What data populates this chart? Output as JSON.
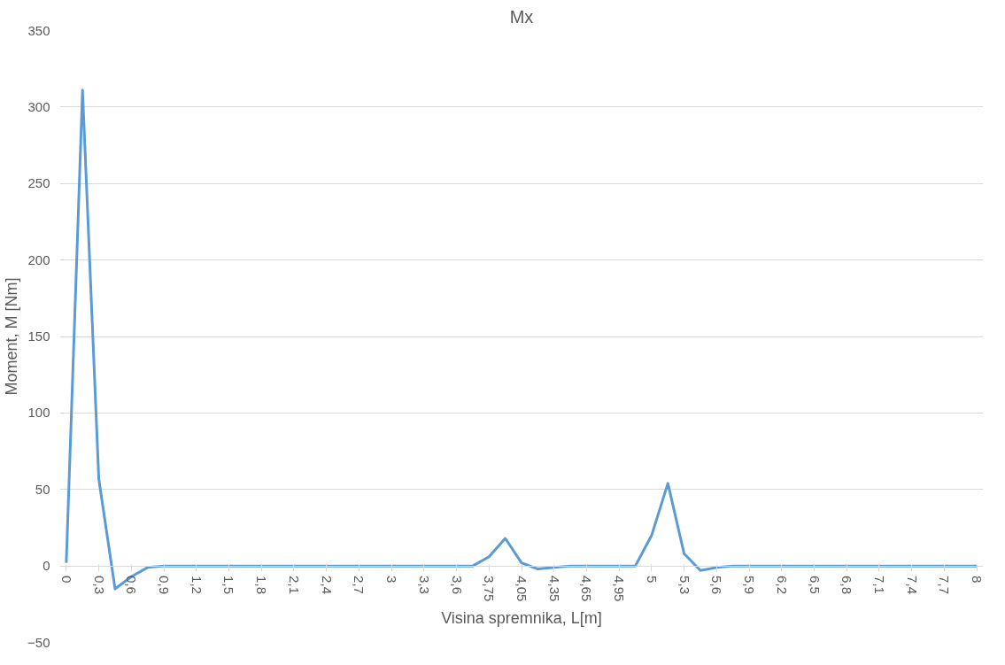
{
  "chart_data": {
    "type": "line",
    "title": "Mx",
    "xlabel": "Visina spremnika, L[m]",
    "ylabel": "Moment, M [Nm]",
    "categories": [
      "0",
      null,
      "0,3",
      null,
      "0,6",
      null,
      "0,9",
      null,
      "1,2",
      null,
      "1,5",
      null,
      "1,8",
      null,
      "2,1",
      null,
      "2,4",
      null,
      "2,7",
      null,
      "3",
      null,
      "3,3",
      null,
      "3,6",
      null,
      "3,75",
      null,
      "4,05",
      null,
      "4,35",
      null,
      "4,65",
      null,
      "4,95",
      null,
      "5",
      null,
      "5,3",
      null,
      "5,6",
      null,
      "5,9",
      null,
      "6,2",
      null,
      "6,5",
      null,
      "6,8",
      null,
      "7,1",
      null,
      "7,4",
      null,
      "7,7",
      null,
      "8"
    ],
    "series": [
      {
        "color": "#5b9bd5",
        "values": [
          2,
          311,
          57,
          -15,
          -7,
          -1,
          0,
          0,
          0,
          0,
          0,
          0,
          0,
          0,
          0,
          0,
          0,
          0,
          0,
          0,
          0,
          0,
          0,
          0,
          0,
          0,
          6,
          18,
          2,
          -2,
          -1,
          0,
          0,
          0,
          0,
          0,
          20,
          54,
          8,
          -3,
          -1,
          0,
          0,
          0,
          0,
          0,
          0,
          0,
          0,
          0,
          0,
          0,
          0,
          0,
          0,
          0,
          0
        ]
      }
    ],
    "ylim": [
      -50,
      350
    ],
    "yticks": [
      -50,
      0,
      50,
      100,
      150,
      200,
      250,
      300,
      350
    ],
    "grid": "y",
    "marker": "none",
    "line_style": "solid"
  }
}
